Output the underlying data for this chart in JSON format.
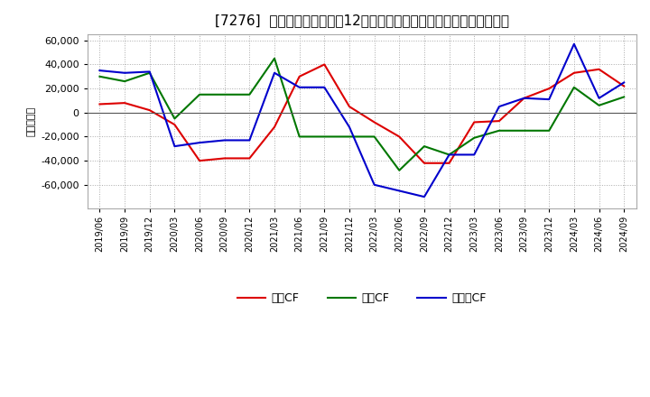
{
  "title": "[7276]  キャッシュフローの12か月移動合計の対前年同期増減額の推移",
  "ylabel": "（百万円）",
  "background_color": "#ffffff",
  "plot_bg_color": "#ffffff",
  "grid_color": "#aaaaaa",
  "ylim": [
    -80000,
    65000
  ],
  "yticks": [
    -60000,
    -40000,
    -20000,
    0,
    20000,
    40000,
    60000
  ],
  "dates": [
    "2019/06",
    "2019/09",
    "2019/12",
    "2020/03",
    "2020/06",
    "2020/09",
    "2020/12",
    "2021/03",
    "2021/06",
    "2021/09",
    "2021/12",
    "2022/03",
    "2022/06",
    "2022/09",
    "2022/12",
    "2023/03",
    "2023/06",
    "2023/09",
    "2023/12",
    "2024/03",
    "2024/06",
    "2024/09"
  ],
  "eigyo_cf": [
    7000,
    8000,
    2000,
    -10000,
    -40000,
    -38000,
    -38000,
    -12000,
    30000,
    40000,
    5000,
    -8000,
    -20000,
    -42000,
    -42000,
    -8000,
    -7000,
    12000,
    20000,
    33000,
    36000,
    22000
  ],
  "toshi_cf": [
    30000,
    26000,
    33000,
    -5000,
    15000,
    15000,
    15000,
    45000,
    -20000,
    -20000,
    -20000,
    -20000,
    -48000,
    -28000,
    -35000,
    -21000,
    -15000,
    -15000,
    -15000,
    21000,
    6000,
    13000
  ],
  "free_cf": [
    35000,
    33000,
    34000,
    -28000,
    -25000,
    -23000,
    -23000,
    33000,
    21000,
    21000,
    -12000,
    -60000,
    -65000,
    -70000,
    -35000,
    -35000,
    5000,
    12000,
    11000,
    57000,
    12000,
    25000
  ],
  "line_colors": {
    "eigyo": "#dd0000",
    "toshi": "#007700",
    "free": "#0000cc"
  },
  "legend_labels": [
    "営業CF",
    "投資CF",
    "フリーCF"
  ]
}
